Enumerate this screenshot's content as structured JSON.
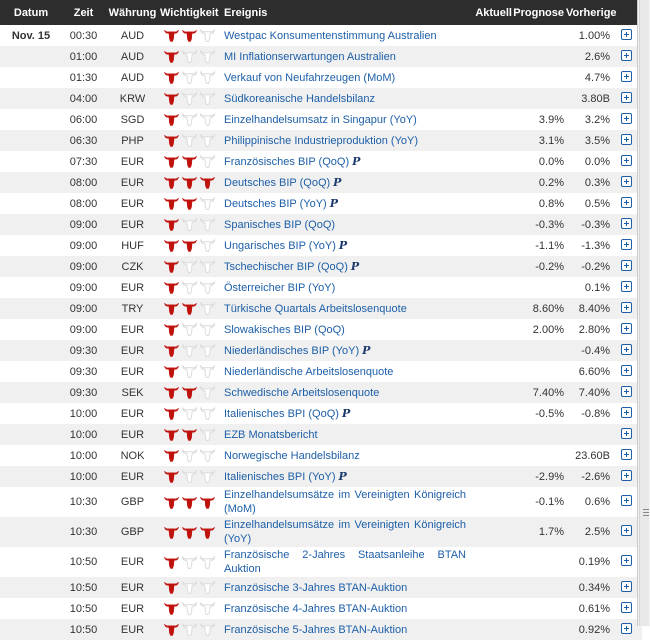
{
  "header": {
    "date": "Datum",
    "time": "Zeit",
    "currency": "Währung",
    "importance": "Wichtigkeit",
    "event": "Ereignis",
    "actual": "Aktuell",
    "forecast": "Prognose",
    "previous": "Vorherige"
  },
  "date_label": "Nov. 15",
  "preliminary_marker": "P",
  "colors": {
    "header_bg": "#2d2d2d",
    "bull_active": "#c0120c",
    "bull_inactive": "#dcdcdc",
    "link": "#1d5fa8",
    "alt_row": "#f0f0f0"
  },
  "icons": {
    "importance": "bull-head-icon",
    "expand": "plus-square-icon"
  },
  "rows": [
    {
      "time": "00:30",
      "currency": "AUD",
      "importance": 2,
      "event": "Westpac Konsumentenstimmung Australien",
      "prelim": false,
      "actual": "",
      "forecast": "",
      "previous": "1.00%"
    },
    {
      "time": "01:00",
      "currency": "AUD",
      "importance": 1,
      "event": "MI Inflationserwartungen Australien",
      "prelim": false,
      "actual": "",
      "forecast": "",
      "previous": "2.6%"
    },
    {
      "time": "01:30",
      "currency": "AUD",
      "importance": 1,
      "event": "Verkauf von Neufahrzeugen (MoM)",
      "prelim": false,
      "actual": "",
      "forecast": "",
      "previous": "4.7%"
    },
    {
      "time": "04:00",
      "currency": "KRW",
      "importance": 1,
      "event": "Südkoreanische Handelsbilanz",
      "prelim": false,
      "actual": "",
      "forecast": "",
      "previous": "3.80B"
    },
    {
      "time": "06:00",
      "currency": "SGD",
      "importance": 1,
      "event": "Einzelhandelsumsatz in Singapur (YoY)",
      "prelim": false,
      "actual": "",
      "forecast": "3.9%",
      "previous": "3.2%"
    },
    {
      "time": "06:30",
      "currency": "PHP",
      "importance": 1,
      "event": "Philippinische Industrieproduktion (YoY)",
      "prelim": false,
      "actual": "",
      "forecast": "3.1%",
      "previous": "3.5%"
    },
    {
      "time": "07:30",
      "currency": "EUR",
      "importance": 2,
      "event": "Französisches BIP (QoQ)",
      "prelim": true,
      "actual": "",
      "forecast": "0.0%",
      "previous": "0.0%"
    },
    {
      "time": "08:00",
      "currency": "EUR",
      "importance": 3,
      "event": "Deutsches BIP (QoQ)",
      "prelim": true,
      "actual": "",
      "forecast": "0.2%",
      "previous": "0.3%"
    },
    {
      "time": "08:00",
      "currency": "EUR",
      "importance": 2,
      "event": "Deutsches BIP (YoY)",
      "prelim": true,
      "actual": "",
      "forecast": "0.8%",
      "previous": "0.5%"
    },
    {
      "time": "09:00",
      "currency": "EUR",
      "importance": 1,
      "event": "Spanisches BIP (QoQ)",
      "prelim": false,
      "actual": "",
      "forecast": "-0.3%",
      "previous": "-0.3%"
    },
    {
      "time": "09:00",
      "currency": "HUF",
      "importance": 2,
      "event": "Ungarisches BIP (YoY)",
      "prelim": true,
      "actual": "",
      "forecast": "-1.1%",
      "previous": "-1.3%"
    },
    {
      "time": "09:00",
      "currency": "CZK",
      "importance": 1,
      "event": "Tschechischer BIP (QoQ)",
      "prelim": true,
      "actual": "",
      "forecast": "-0.2%",
      "previous": "-0.2%"
    },
    {
      "time": "09:00",
      "currency": "EUR",
      "importance": 1,
      "event": "Österreicher BIP (YoY)",
      "prelim": false,
      "actual": "",
      "forecast": "",
      "previous": "0.1%"
    },
    {
      "time": "09:00",
      "currency": "TRY",
      "importance": 2,
      "event": "Türkische Quartals Arbeitslosenquote",
      "prelim": false,
      "actual": "",
      "forecast": "8.60%",
      "previous": "8.40%"
    },
    {
      "time": "09:00",
      "currency": "EUR",
      "importance": 1,
      "event": "Slowakisches BIP (QoQ)",
      "prelim": false,
      "actual": "",
      "forecast": "2.00%",
      "previous": "2.80%"
    },
    {
      "time": "09:30",
      "currency": "EUR",
      "importance": 1,
      "event": "Niederländisches BIP (YoY)",
      "prelim": true,
      "actual": "",
      "forecast": "",
      "previous": "-0.4%"
    },
    {
      "time": "09:30",
      "currency": "EUR",
      "importance": 1,
      "event": "Niederländische Arbeitslosenquote",
      "prelim": false,
      "actual": "",
      "forecast": "",
      "previous": "6.60%"
    },
    {
      "time": "09:30",
      "currency": "SEK",
      "importance": 2,
      "event": "Schwedische Arbeitslosenquote",
      "prelim": false,
      "actual": "",
      "forecast": "7.40%",
      "previous": "7.40%"
    },
    {
      "time": "10:00",
      "currency": "EUR",
      "importance": 1,
      "event": "Italienisches BPI (QoQ)",
      "prelim": true,
      "actual": "",
      "forecast": "-0.5%",
      "previous": "-0.8%"
    },
    {
      "time": "10:00",
      "currency": "EUR",
      "importance": 2,
      "event": "EZB Monatsbericht",
      "prelim": false,
      "actual": "",
      "forecast": "",
      "previous": ""
    },
    {
      "time": "10:00",
      "currency": "NOK",
      "importance": 1,
      "event": "Norwegische Handelsbilanz",
      "prelim": false,
      "actual": "",
      "forecast": "",
      "previous": "23.60B"
    },
    {
      "time": "10:00",
      "currency": "EUR",
      "importance": 1,
      "event": "Italienisches BPI (YoY)",
      "prelim": true,
      "actual": "",
      "forecast": "-2.9%",
      "previous": "-2.6%"
    },
    {
      "time": "10:30",
      "currency": "GBP",
      "importance": 3,
      "event": "Einzelhandelsumsätze im Vereinigten Königreich (MoM)",
      "prelim": false,
      "actual": "",
      "forecast": "-0.1%",
      "previous": "0.6%"
    },
    {
      "time": "10:30",
      "currency": "GBP",
      "importance": 3,
      "event": "Einzelhandelsumsätze im Vereinigten Königreich (YoY)",
      "prelim": false,
      "actual": "",
      "forecast": "1.7%",
      "previous": "2.5%"
    },
    {
      "time": "10:50",
      "currency": "EUR",
      "importance": 1,
      "event": "Französische 2-Jahres Staatsanleihe BTAN Auktion",
      "prelim": false,
      "actual": "",
      "forecast": "",
      "previous": "0.19%"
    },
    {
      "time": "10:50",
      "currency": "EUR",
      "importance": 1,
      "event": "Französische 3-Jahres BTAN-Auktion",
      "prelim": false,
      "actual": "",
      "forecast": "",
      "previous": "0.34%"
    },
    {
      "time": "10:50",
      "currency": "EUR",
      "importance": 1,
      "event": "Französische 4-Jahres BTAN-Auktion",
      "prelim": false,
      "actual": "",
      "forecast": "",
      "previous": "0.61%"
    },
    {
      "time": "10:50",
      "currency": "EUR",
      "importance": 1,
      "event": "Französische 5-Jahres BTAN-Auktion",
      "prelim": false,
      "actual": "",
      "forecast": "",
      "previous": "0.92%"
    }
  ]
}
